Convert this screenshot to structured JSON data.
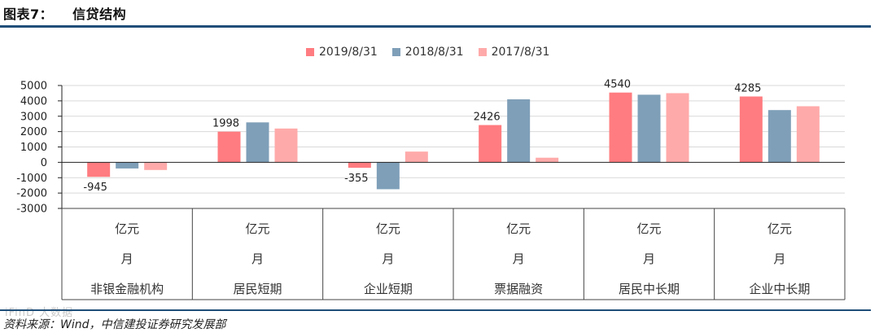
{
  "header": {
    "figure_no": "图表7：",
    "title": "信贷结构"
  },
  "source_note": "资料来源：Wind，中信建投证券研究发展部",
  "watermark": "iFinD 大数据",
  "legend": [
    {
      "name": "2019/8/31",
      "color": "#ff7c80"
    },
    {
      "name": "2018/8/31",
      "color": "#7f9fb8"
    },
    {
      "name": "2017/8/31",
      "color": "#ffaaaa"
    }
  ],
  "chart_data": {
    "type": "bar",
    "title": "",
    "categories": [
      {
        "unit": "亿元",
        "period": "月",
        "name": "非银金融机构"
      },
      {
        "unit": "亿元",
        "period": "月",
        "name": "居民短期"
      },
      {
        "unit": "亿元",
        "period": "月",
        "name": "企业短期"
      },
      {
        "unit": "亿元",
        "period": "月",
        "name": "票据融资"
      },
      {
        "unit": "亿元",
        "period": "月",
        "name": "居民中长期"
      },
      {
        "unit": "亿元",
        "period": "月",
        "name": "企业中长期"
      }
    ],
    "series": [
      {
        "name": "2019/8/31",
        "color": "#ff7c80",
        "values": [
          -945,
          1998,
          -355,
          2426,
          4540,
          4285
        ]
      },
      {
        "name": "2018/8/31",
        "color": "#7f9fb8",
        "values": [
          -400,
          2600,
          -1750,
          4100,
          4400,
          3400
        ]
      },
      {
        "name": "2017/8/31",
        "color": "#ffaaaa",
        "values": [
          -500,
          2200,
          700,
          300,
          4500,
          3650
        ]
      }
    ],
    "data_labels": [
      {
        "series": 0,
        "category": 0,
        "text": "-945"
      },
      {
        "series": 0,
        "category": 1,
        "text": "1998"
      },
      {
        "series": 0,
        "category": 2,
        "text": "-355"
      },
      {
        "series": 0,
        "category": 3,
        "text": "2426"
      },
      {
        "series": 0,
        "category": 4,
        "text": "4540"
      },
      {
        "series": 0,
        "category": 5,
        "text": "4285"
      }
    ],
    "ylim": [
      -3000,
      5000
    ],
    "yticks": [
      5000,
      4000,
      3000,
      2000,
      1000,
      0,
      -1000,
      -2000,
      -3000
    ],
    "grid": true,
    "legend_position": "top-center"
  }
}
